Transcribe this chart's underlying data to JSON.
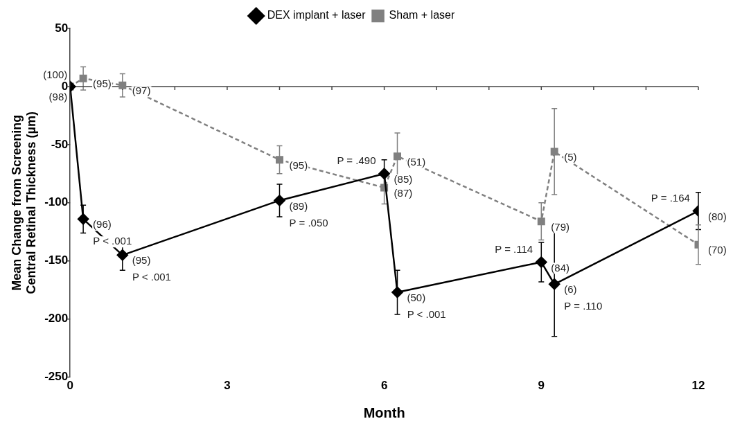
{
  "chart_data": {
    "type": "line",
    "xlabel": "Month",
    "ylabel": "Mean Change from Screening\nCentral Retinal Thickness (µm)",
    "xlim": [
      0,
      12
    ],
    "xticks": [
      0,
      3,
      6,
      9,
      12
    ],
    "ylim": [
      -250,
      50
    ],
    "yticks": [
      -250,
      -200,
      -150,
      -100,
      -50,
      0,
      50
    ],
    "grid": false,
    "legend": "top",
    "ref_lines": [
      {
        "axis": "y",
        "value": 0,
        "color": "#444444",
        "line_style": "solid"
      }
    ],
    "series": [
      {
        "name": "DEX implant + laser",
        "color": "#000000",
        "marker": "diamond",
        "line_style": "solid",
        "x": [
          0,
          0.25,
          1,
          4,
          6,
          6.25,
          9,
          9.25,
          12
        ],
        "values": [
          0,
          -114,
          -145,
          -98,
          -75,
          -177,
          -151,
          -170,
          -107
        ],
        "errors": [
          null,
          12,
          13,
          14,
          12,
          19,
          17,
          45,
          16
        ]
      },
      {
        "name": "Sham + laser",
        "color": "#808080",
        "marker": "square",
        "line_style": "dashed",
        "x": [
          0,
          0.25,
          1,
          4,
          6,
          6.25,
          9,
          9.25,
          12
        ],
        "values": [
          0,
          7,
          1,
          -63,
          -87,
          -60,
          -116,
          -56,
          -136
        ],
        "errors": [
          null,
          10,
          10,
          12,
          14,
          20,
          16,
          37,
          17
        ]
      }
    ],
    "annotations": [
      {
        "text": "(100)",
        "x": 0,
        "y": 0
      },
      {
        "text": "(98)",
        "x": 0,
        "y": 0
      },
      {
        "text": "(95)",
        "x": 0.25,
        "y": 7
      },
      {
        "text": "(97)",
        "x": 1,
        "y": 1
      },
      {
        "text": "(96)",
        "x": 0.25,
        "y": -114
      },
      {
        "text": "P < .001",
        "x": 0.25,
        "y": -114
      },
      {
        "text": "(95)",
        "x": 1,
        "y": -145
      },
      {
        "text": "P < .001",
        "x": 1,
        "y": -145
      },
      {
        "text": "(95)",
        "x": 4,
        "y": -63
      },
      {
        "text": "(89)",
        "x": 4,
        "y": -98
      },
      {
        "text": "P = .050",
        "x": 4,
        "y": -98
      },
      {
        "text": "(85)",
        "x": 6,
        "y": -75
      },
      {
        "text": "P = .490",
        "x": 6,
        "y": -75
      },
      {
        "text": "(51)",
        "x": 6.25,
        "y": -60
      },
      {
        "text": "(87)",
        "x": 6,
        "y": -87
      },
      {
        "text": "(50)",
        "x": 6.25,
        "y": -177
      },
      {
        "text": "P < .001",
        "x": 6.25,
        "y": -177
      },
      {
        "text": "(79)",
        "x": 9,
        "y": -116
      },
      {
        "text": "(84)",
        "x": 9,
        "y": -151
      },
      {
        "text": "P = .114",
        "x": 9,
        "y": -151
      },
      {
        "text": "(5)",
        "x": 9.25,
        "y": -56
      },
      {
        "text": "(6)",
        "x": 9.25,
        "y": -170
      },
      {
        "text": "P = .110",
        "x": 9.25,
        "y": -170
      },
      {
        "text": "(80)",
        "x": 12,
        "y": -107
      },
      {
        "text": "P = .164",
        "x": 12,
        "y": -107
      },
      {
        "text": "(70)",
        "x": 12,
        "y": -136
      }
    ]
  }
}
